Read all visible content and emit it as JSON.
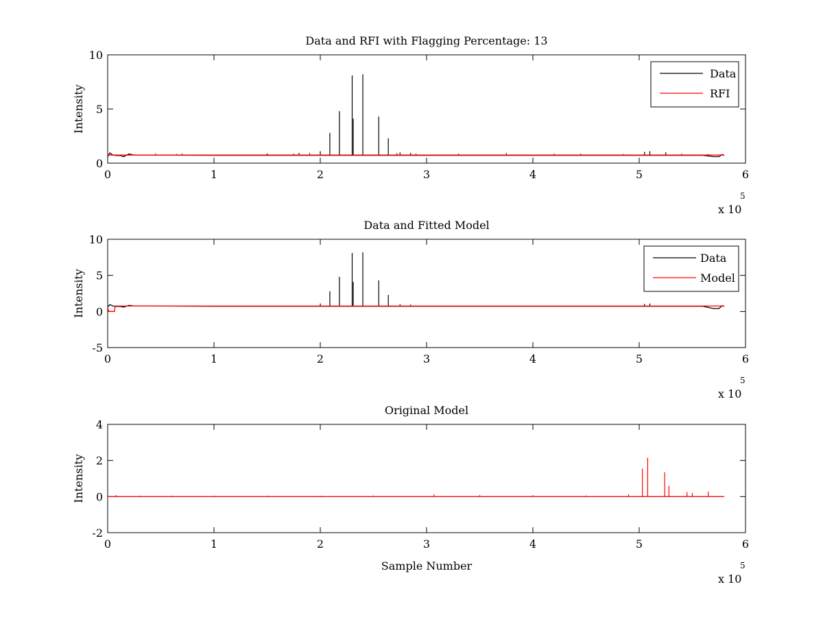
{
  "figure": {
    "background": "#ffffff"
  },
  "colors": {
    "data": "#000000",
    "red": "#ff0000",
    "axes": "#000000"
  },
  "chart_data": [
    {
      "type": "line",
      "title": "Data and RFI with Flagging Percentage: 13",
      "xlabel": "",
      "ylabel": "Intensity",
      "xlim": [
        0,
        600000
      ],
      "ylim": [
        0,
        10
      ],
      "xticks": [
        0,
        100000,
        200000,
        300000,
        400000,
        500000,
        600000
      ],
      "xtick_labels": [
        "0",
        "1",
        "2",
        "3",
        "4",
        "5",
        "6"
      ],
      "yticks": [
        0,
        5,
        10
      ],
      "ytick_labels": [
        "0",
        "5",
        "10"
      ],
      "x_exponent": {
        "base": "x 10",
        "power": "5"
      },
      "legend": {
        "position": "top-right",
        "entries": [
          "Data",
          "RFI"
        ]
      },
      "series": [
        {
          "name": "Data",
          "color": "#000000",
          "baseline": 0.75,
          "baseline_x": [
            0,
            2000,
            5000,
            8000,
            12000,
            15000,
            20000,
            25000,
            40000,
            100000,
            200000,
            300000,
            400000,
            500000,
            560000,
            570000,
            575000,
            578000,
            580000
          ],
          "baseline_y": [
            0.6,
            0.95,
            0.75,
            0.7,
            0.7,
            0.6,
            0.85,
            0.75,
            0.75,
            0.72,
            0.72,
            0.72,
            0.72,
            0.72,
            0.72,
            0.6,
            0.6,
            0.8,
            0.7
          ],
          "spikes": [
            {
              "x": 200000,
              "y": 1.1
            },
            {
              "x": 209000,
              "y": 2.8
            },
            {
              "x": 218000,
              "y": 4.8
            },
            {
              "x": 230000,
              "y": 8.1
            },
            {
              "x": 231000,
              "y": 4.1
            },
            {
              "x": 240000,
              "y": 8.2
            },
            {
              "x": 255000,
              "y": 4.3
            },
            {
              "x": 264000,
              "y": 2.3
            },
            {
              "x": 275000,
              "y": 1.0
            },
            {
              "x": 285000,
              "y": 0.95
            },
            {
              "x": 505000,
              "y": 1.05
            },
            {
              "x": 510000,
              "y": 1.1
            },
            {
              "x": 525000,
              "y": 1.0
            },
            {
              "x": 150000,
              "y": 0.9
            },
            {
              "x": 180000,
              "y": 0.95
            }
          ]
        },
        {
          "name": "RFI",
          "color": "#ff0000",
          "baseline": 0.75,
          "spikes": [
            {
              "x": 45000,
              "y": 0.9
            },
            {
              "x": 65000,
              "y": 0.85
            },
            {
              "x": 70000,
              "y": 0.9
            },
            {
              "x": 175000,
              "y": 0.9
            },
            {
              "x": 190000,
              "y": 0.95
            },
            {
              "x": 272000,
              "y": 0.95
            },
            {
              "x": 290000,
              "y": 0.9
            },
            {
              "x": 330000,
              "y": 0.9
            },
            {
              "x": 375000,
              "y": 0.95
            },
            {
              "x": 420000,
              "y": 0.9
            },
            {
              "x": 445000,
              "y": 0.9
            },
            {
              "x": 485000,
              "y": 0.85
            },
            {
              "x": 540000,
              "y": 0.9
            },
            {
              "x": 565000,
              "y": 0.85
            }
          ]
        }
      ]
    },
    {
      "type": "line",
      "title": "Data and Fitted Model",
      "xlabel": "",
      "ylabel": "Intensity",
      "xlim": [
        0,
        600000
      ],
      "ylim": [
        -5,
        10
      ],
      "xticks": [
        0,
        100000,
        200000,
        300000,
        400000,
        500000,
        600000
      ],
      "xtick_labels": [
        "0",
        "1",
        "2",
        "3",
        "4",
        "5",
        "6"
      ],
      "yticks": [
        -5,
        0,
        5,
        10
      ],
      "ytick_labels": [
        "-5",
        "0",
        "5",
        "10"
      ],
      "x_exponent": {
        "base": "x 10",
        "power": "5"
      },
      "legend": {
        "position": "top-right",
        "entries": [
          "Data",
          "Model"
        ]
      },
      "series": [
        {
          "name": "Data",
          "color": "#000000",
          "baseline_x": [
            0,
            2000,
            5000,
            8000,
            12000,
            15000,
            20000,
            25000,
            40000,
            100000,
            200000,
            300000,
            400000,
            500000,
            560000,
            570000,
            575000,
            578000,
            580000
          ],
          "baseline_y": [
            0.6,
            0.95,
            0.75,
            0.7,
            0.7,
            0.6,
            0.85,
            0.75,
            0.75,
            0.72,
            0.72,
            0.72,
            0.72,
            0.72,
            0.72,
            0.4,
            0.4,
            0.8,
            0.7
          ],
          "spikes": [
            {
              "x": 200000,
              "y": 1.1
            },
            {
              "x": 209000,
              "y": 2.8
            },
            {
              "x": 218000,
              "y": 4.8
            },
            {
              "x": 230000,
              "y": 8.1
            },
            {
              "x": 231000,
              "y": 4.1
            },
            {
              "x": 240000,
              "y": 8.2
            },
            {
              "x": 255000,
              "y": 4.3
            },
            {
              "x": 264000,
              "y": 2.3
            },
            {
              "x": 275000,
              "y": 1.0
            },
            {
              "x": 285000,
              "y": 0.95
            },
            {
              "x": 505000,
              "y": 1.05
            },
            {
              "x": 510000,
              "y": 1.1
            }
          ]
        },
        {
          "name": "Model",
          "color": "#ff0000",
          "baseline_x": [
            0,
            1000,
            6500,
            7000,
            580000
          ],
          "baseline_y": [
            0.6,
            0.0,
            0.0,
            0.75,
            0.75
          ],
          "spikes": []
        }
      ]
    },
    {
      "type": "line",
      "title": "Original Model",
      "xlabel": "Sample Number",
      "ylabel": "Intensity",
      "xlim": [
        0,
        600000
      ],
      "ylim": [
        -2,
        4
      ],
      "xticks": [
        0,
        100000,
        200000,
        300000,
        400000,
        500000,
        600000
      ],
      "xtick_labels": [
        "0",
        "1",
        "2",
        "3",
        "4",
        "5",
        "6"
      ],
      "yticks": [
        -2,
        0,
        2,
        4
      ],
      "ytick_labels": [
        "-2",
        "0",
        "2",
        "4"
      ],
      "x_exponent": {
        "base": "x 10",
        "power": "5"
      },
      "legend": null,
      "series": [
        {
          "name": "Original Model",
          "color": "#ff0000",
          "baseline_x": [
            0,
            580000
          ],
          "baseline_y": [
            0.0,
            0.0
          ],
          "spikes": [
            {
              "x": 8000,
              "y": 0.08
            },
            {
              "x": 30000,
              "y": 0.05
            },
            {
              "x": 60000,
              "y": 0.05
            },
            {
              "x": 100000,
              "y": 0.05
            },
            {
              "x": 150000,
              "y": 0.05
            },
            {
              "x": 200000,
              "y": 0.05
            },
            {
              "x": 250000,
              "y": 0.06
            },
            {
              "x": 307000,
              "y": 0.12
            },
            {
              "x": 350000,
              "y": 0.08
            },
            {
              "x": 400000,
              "y": 0.08
            },
            {
              "x": 450000,
              "y": 0.06
            },
            {
              "x": 490000,
              "y": 0.12
            },
            {
              "x": 503000,
              "y": 1.55
            },
            {
              "x": 508000,
              "y": 2.15
            },
            {
              "x": 524000,
              "y": 1.35
            },
            {
              "x": 528000,
              "y": 0.6
            },
            {
              "x": 545000,
              "y": 0.25
            },
            {
              "x": 550000,
              "y": 0.2
            },
            {
              "x": 565000,
              "y": 0.28
            }
          ]
        }
      ]
    }
  ]
}
